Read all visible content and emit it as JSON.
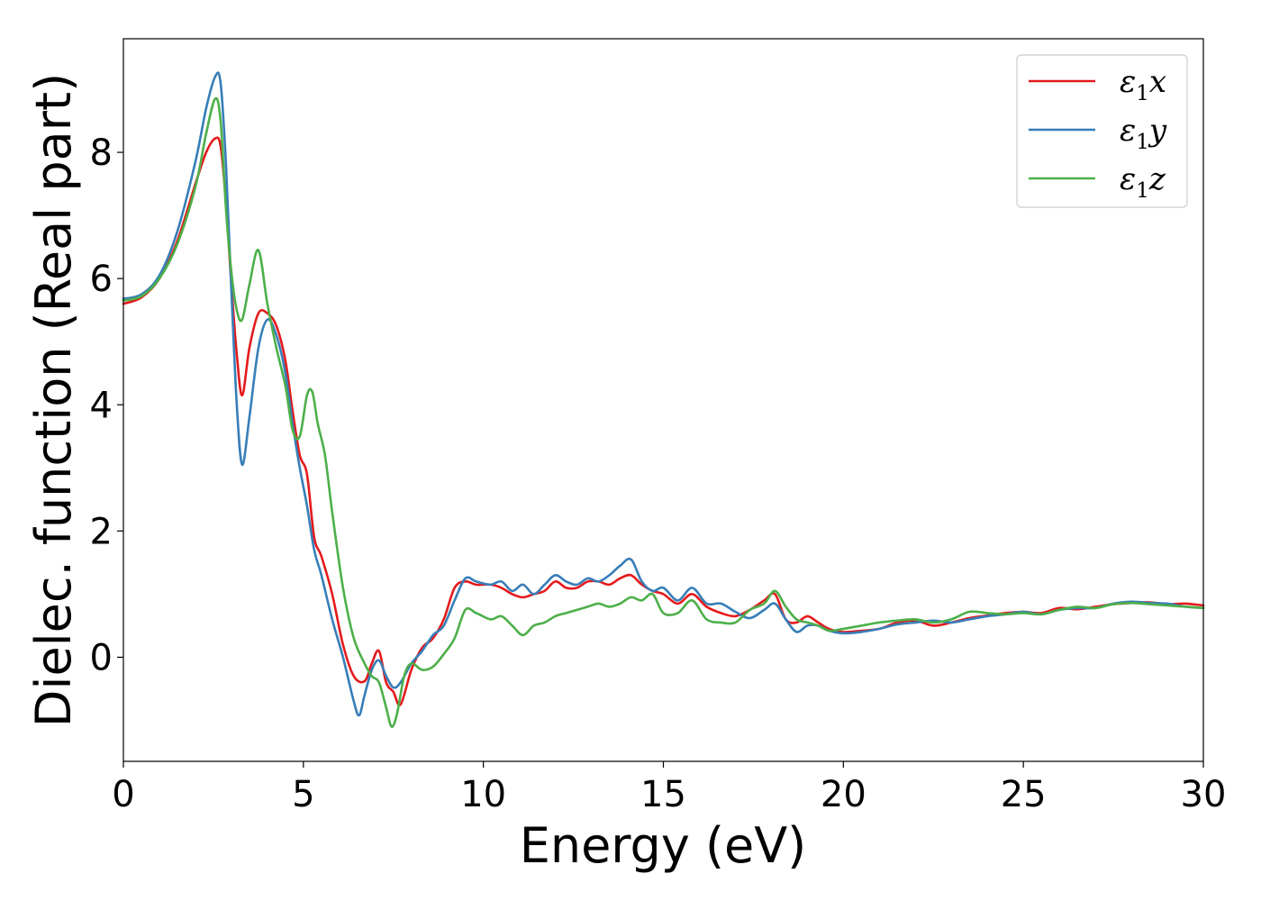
{
  "chart_data": {
    "type": "line",
    "xlabel": "Energy (eV)",
    "ylabel": "Dielec. function (Real part)",
    "xlim": [
      0,
      30
    ],
    "ylim": [
      -1.65,
      9.8
    ],
    "xticks": [
      0,
      5,
      10,
      15,
      20,
      25,
      30
    ],
    "yticks": [
      0,
      2,
      4,
      6,
      8
    ],
    "grid": false,
    "legend_position": "top-right",
    "series": [
      {
        "name": "ε1x",
        "legend_base": "ε",
        "legend_sub": "1",
        "legend_var": "x",
        "color": "#e41a1c",
        "x": [
          0,
          0.5,
          1.0,
          1.5,
          2.0,
          2.3,
          2.55,
          2.7,
          2.85,
          3.0,
          3.15,
          3.3,
          3.5,
          3.75,
          4.0,
          4.25,
          4.5,
          4.7,
          4.9,
          5.1,
          5.3,
          5.5,
          5.8,
          6.1,
          6.4,
          6.7,
          6.9,
          7.1,
          7.3,
          7.5,
          7.7,
          8.0,
          8.3,
          8.6,
          8.9,
          9.2,
          9.5,
          9.8,
          10.2,
          10.5,
          10.8,
          11.1,
          11.4,
          11.7,
          12.0,
          12.3,
          12.6,
          12.9,
          13.2,
          13.5,
          13.8,
          14.1,
          14.4,
          14.7,
          15.0,
          15.4,
          15.8,
          16.2,
          16.6,
          17.0,
          17.4,
          17.8,
          18.1,
          18.4,
          18.7,
          19.0,
          19.3,
          19.6,
          20.0,
          20.5,
          21.0,
          21.5,
          22.0,
          22.5,
          23.0,
          23.5,
          24.0,
          24.5,
          25.0,
          25.5,
          26.0,
          26.5,
          27.0,
          27.5,
          28.0,
          28.5,
          29.0,
          29.5,
          30.0
        ],
        "y": [
          5.6,
          5.7,
          6.0,
          6.6,
          7.5,
          8.0,
          8.22,
          8.1,
          7.2,
          5.9,
          4.8,
          4.15,
          4.9,
          5.45,
          5.45,
          5.25,
          4.7,
          3.9,
          3.2,
          2.9,
          1.9,
          1.6,
          1.0,
          0.2,
          -0.3,
          -0.38,
          -0.1,
          0.1,
          -0.4,
          -0.55,
          -0.75,
          -0.2,
          0.15,
          0.3,
          0.6,
          1.1,
          1.2,
          1.15,
          1.15,
          1.1,
          1.0,
          0.95,
          1.0,
          1.05,
          1.2,
          1.1,
          1.1,
          1.2,
          1.2,
          1.15,
          1.25,
          1.3,
          1.15,
          1.05,
          1.0,
          0.85,
          1.0,
          0.8,
          0.7,
          0.65,
          0.75,
          0.9,
          1.0,
          0.6,
          0.55,
          0.65,
          0.55,
          0.45,
          0.4,
          0.42,
          0.45,
          0.55,
          0.58,
          0.5,
          0.55,
          0.62,
          0.66,
          0.7,
          0.72,
          0.7,
          0.78,
          0.76,
          0.8,
          0.84,
          0.86,
          0.87,
          0.84,
          0.85,
          0.82
        ]
      },
      {
        "name": "ε1y",
        "legend_base": "ε",
        "legend_sub": "1",
        "legend_var": "y",
        "color": "#377eb8",
        "x": [
          0,
          0.5,
          1.0,
          1.5,
          2.0,
          2.3,
          2.55,
          2.7,
          2.85,
          3.0,
          3.15,
          3.3,
          3.5,
          3.75,
          4.0,
          4.25,
          4.5,
          4.7,
          4.9,
          5.1,
          5.3,
          5.5,
          5.8,
          6.1,
          6.4,
          6.55,
          6.7,
          6.9,
          7.1,
          7.3,
          7.5,
          7.7,
          8.0,
          8.3,
          8.6,
          8.9,
          9.2,
          9.5,
          9.8,
          10.2,
          10.5,
          10.8,
          11.1,
          11.4,
          11.7,
          12.0,
          12.3,
          12.6,
          12.9,
          13.2,
          13.5,
          13.8,
          14.1,
          14.4,
          14.7,
          15.0,
          15.4,
          15.8,
          16.2,
          16.6,
          17.0,
          17.4,
          17.8,
          18.1,
          18.4,
          18.7,
          19.0,
          19.3,
          19.6,
          20.0,
          20.5,
          21.0,
          21.5,
          22.0,
          22.5,
          23.0,
          23.5,
          24.0,
          24.5,
          25.0,
          25.5,
          26.0,
          26.5,
          27.0,
          27.5,
          28.0,
          28.5,
          29.0,
          29.5,
          30.0
        ],
        "y": [
          5.68,
          5.75,
          6.05,
          6.75,
          7.85,
          8.7,
          9.2,
          9.1,
          7.8,
          5.8,
          4.0,
          3.05,
          3.8,
          4.9,
          5.35,
          5.1,
          4.5,
          3.7,
          3.0,
          2.4,
          1.7,
          1.3,
          0.6,
          0.0,
          -0.7,
          -0.92,
          -0.6,
          -0.2,
          -0.05,
          -0.3,
          -0.48,
          -0.4,
          -0.1,
          0.1,
          0.35,
          0.5,
          0.9,
          1.25,
          1.2,
          1.15,
          1.2,
          1.05,
          1.15,
          1.0,
          1.15,
          1.3,
          1.2,
          1.15,
          1.25,
          1.2,
          1.3,
          1.45,
          1.55,
          1.2,
          1.05,
          1.1,
          0.9,
          1.1,
          0.85,
          0.85,
          0.72,
          0.62,
          0.75,
          0.85,
          0.6,
          0.4,
          0.5,
          0.5,
          0.42,
          0.38,
          0.4,
          0.45,
          0.52,
          0.55,
          0.58,
          0.55,
          0.6,
          0.65,
          0.68,
          0.72,
          0.68,
          0.75,
          0.78,
          0.78,
          0.85,
          0.88,
          0.86,
          0.85,
          0.8,
          0.78
        ]
      },
      {
        "name": "ε1z",
        "legend_base": "ε",
        "legend_sub": "1",
        "legend_var": "z",
        "color": "#4daf4a",
        "x": [
          0,
          0.5,
          1.0,
          1.5,
          2.0,
          2.3,
          2.55,
          2.7,
          2.85,
          3.0,
          3.15,
          3.3,
          3.5,
          3.75,
          4.0,
          4.25,
          4.5,
          4.7,
          4.9,
          5.1,
          5.25,
          5.4,
          5.6,
          5.8,
          6.1,
          6.4,
          6.7,
          6.9,
          7.1,
          7.3,
          7.45,
          7.6,
          7.8,
          8.0,
          8.3,
          8.6,
          8.9,
          9.2,
          9.5,
          9.8,
          10.2,
          10.5,
          10.8,
          11.1,
          11.4,
          11.7,
          12.0,
          12.3,
          12.6,
          12.9,
          13.2,
          13.5,
          13.8,
          14.1,
          14.4,
          14.7,
          15.0,
          15.4,
          15.8,
          16.2,
          16.6,
          17.0,
          17.4,
          17.8,
          18.1,
          18.4,
          18.7,
          19.0,
          19.3,
          19.6,
          20.0,
          20.5,
          21.0,
          21.5,
          22.0,
          22.5,
          23.0,
          23.5,
          24.0,
          24.5,
          25.0,
          25.5,
          26.0,
          26.5,
          27.0,
          27.5,
          28.0,
          28.5,
          29.0,
          29.5,
          30.0
        ],
        "y": [
          5.65,
          5.72,
          6.0,
          6.55,
          7.45,
          8.3,
          8.85,
          8.5,
          7.1,
          6.1,
          5.5,
          5.35,
          5.9,
          6.45,
          5.6,
          4.9,
          4.3,
          3.6,
          3.5,
          4.15,
          4.2,
          3.7,
          3.2,
          2.3,
          1.1,
          0.3,
          -0.1,
          -0.3,
          -0.4,
          -0.8,
          -1.1,
          -0.9,
          -0.3,
          -0.1,
          -0.2,
          -0.15,
          0.05,
          0.3,
          0.75,
          0.7,
          0.6,
          0.65,
          0.5,
          0.35,
          0.5,
          0.55,
          0.65,
          0.7,
          0.75,
          0.8,
          0.85,
          0.8,
          0.85,
          0.95,
          0.9,
          1.0,
          0.7,
          0.7,
          0.9,
          0.6,
          0.55,
          0.55,
          0.75,
          0.85,
          1.05,
          0.8,
          0.6,
          0.55,
          0.5,
          0.42,
          0.45,
          0.5,
          0.55,
          0.58,
          0.6,
          0.55,
          0.6,
          0.72,
          0.7,
          0.68,
          0.7,
          0.68,
          0.75,
          0.8,
          0.78,
          0.84,
          0.86,
          0.84,
          0.82,
          0.8,
          0.78
        ]
      }
    ]
  }
}
